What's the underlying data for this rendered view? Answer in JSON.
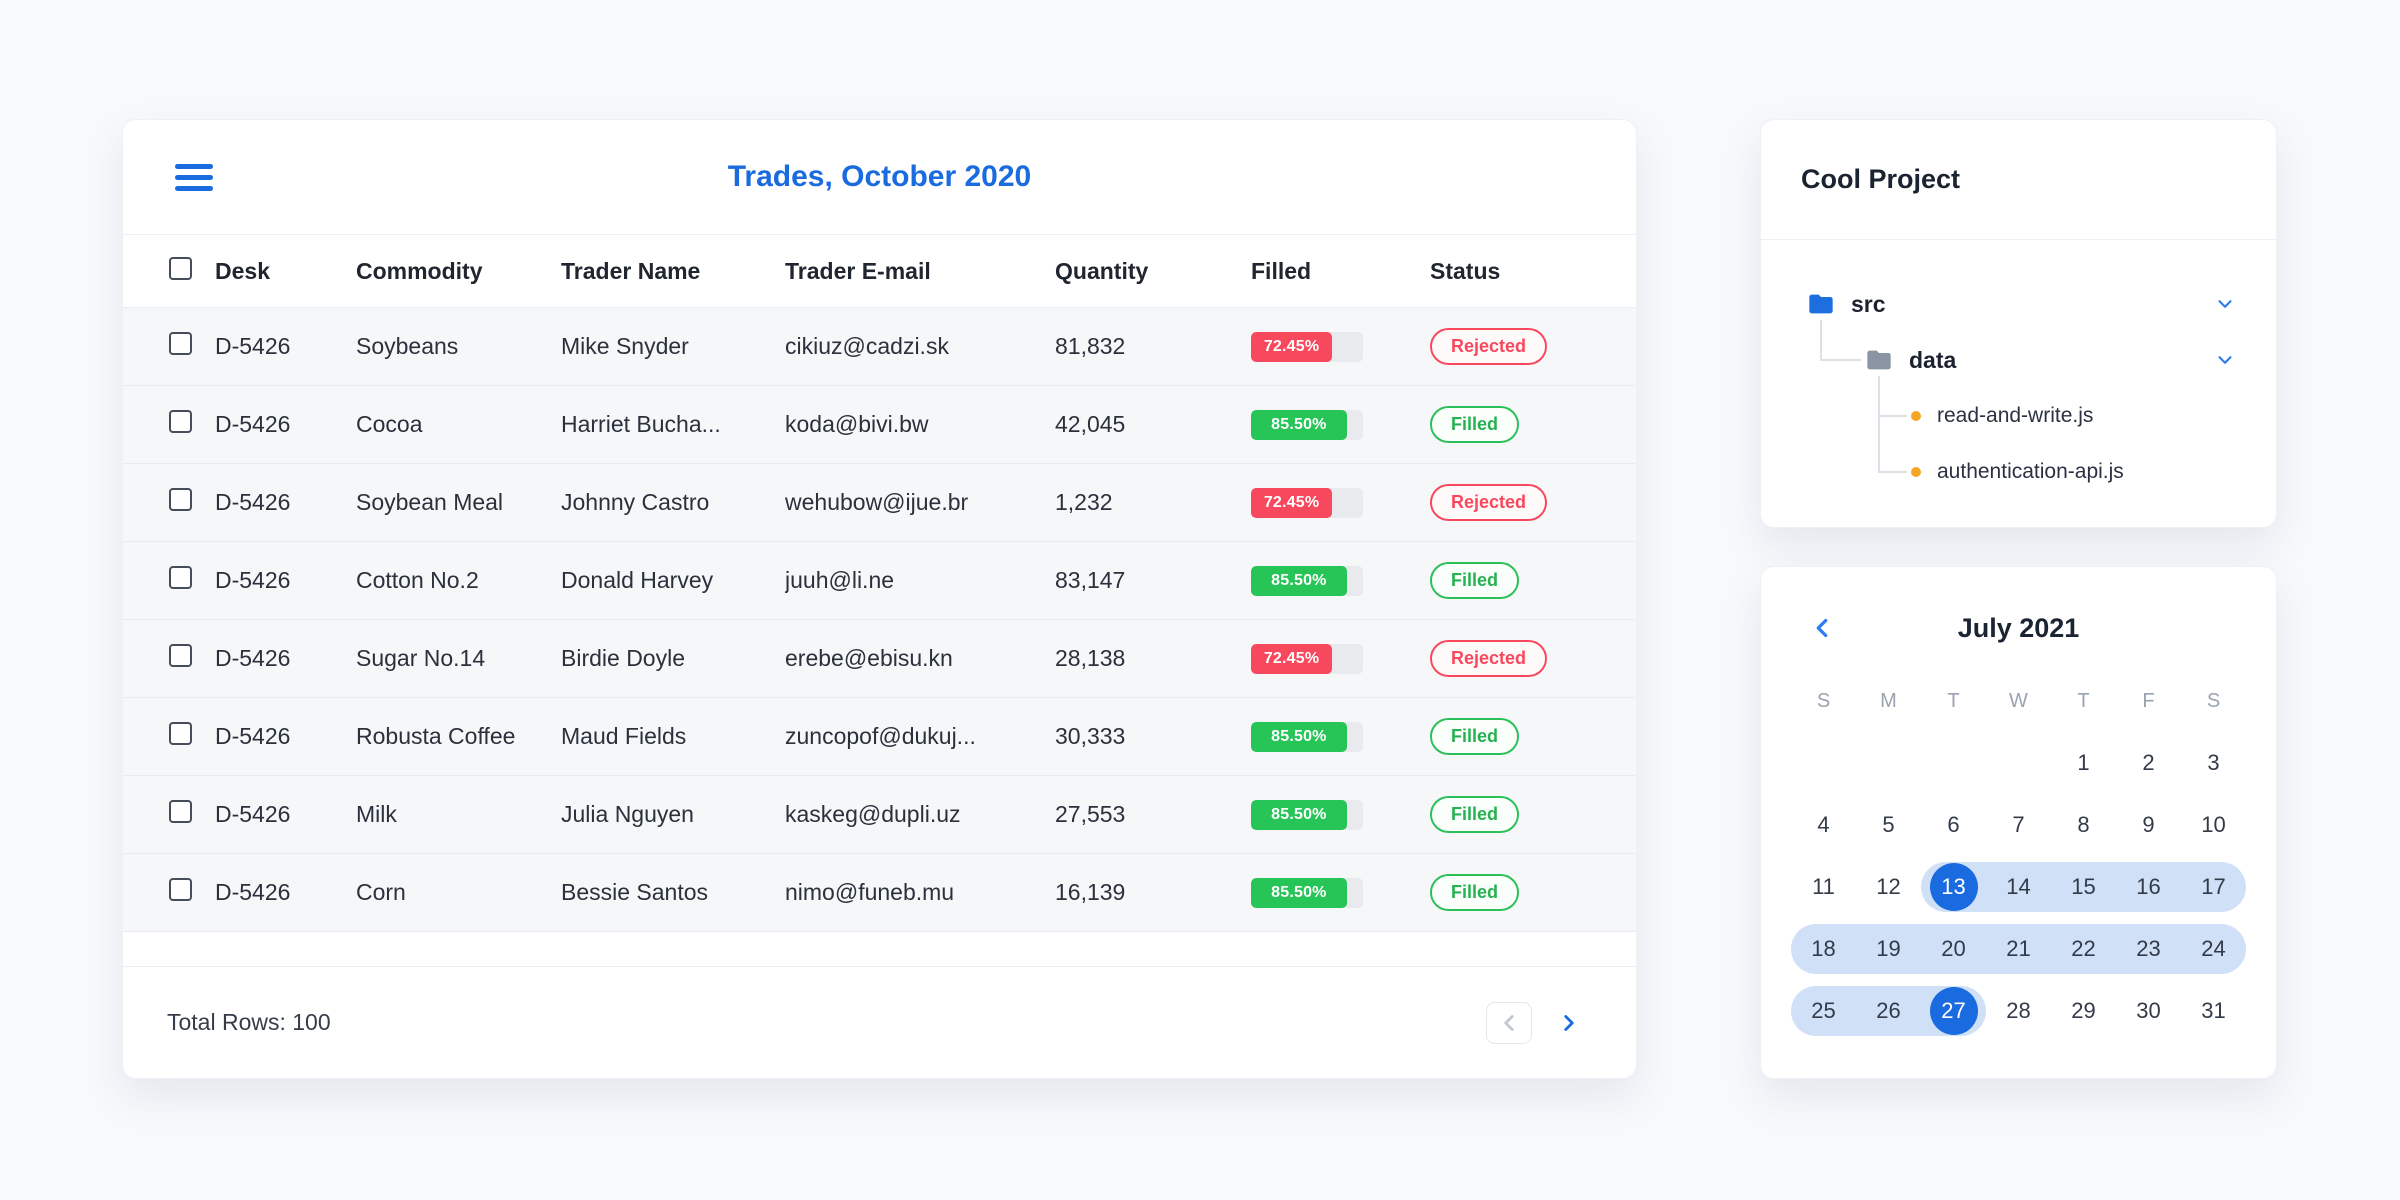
{
  "trades": {
    "title": "Trades, October 2020",
    "columns": {
      "desk": "Desk",
      "commodity": "Commodity",
      "trader": "Trader Name",
      "email": "Trader E-mail",
      "quantity": "Quantity",
      "filled": "Filled",
      "status": "Status"
    },
    "rows": [
      {
        "desk": "D-5426",
        "commodity": "Soybeans",
        "trader": "Mike Snyder",
        "email": "cikiuz@cadzi.sk",
        "quantity": "81,832",
        "filled_label": "72.45%",
        "filled_pct": 72.45,
        "status": "Rejected"
      },
      {
        "desk": "D-5426",
        "commodity": "Cocoa",
        "trader": "Harriet Bucha...",
        "email": "koda@bivi.bw",
        "quantity": "42,045",
        "filled_label": "85.50%",
        "filled_pct": 85.5,
        "status": "Filled"
      },
      {
        "desk": "D-5426",
        "commodity": "Soybean Meal",
        "trader": "Johnny Castro",
        "email": "wehubow@ijue.br",
        "quantity": "1,232",
        "filled_label": "72.45%",
        "filled_pct": 72.45,
        "status": "Rejected"
      },
      {
        "desk": "D-5426",
        "commodity": "Cotton No.2",
        "trader": "Donald Harvey",
        "email": "juuh@li.ne",
        "quantity": "83,147",
        "filled_label": "85.50%",
        "filled_pct": 85.5,
        "status": "Filled"
      },
      {
        "desk": "D-5426",
        "commodity": "Sugar No.14",
        "trader": "Birdie Doyle",
        "email": "erebe@ebisu.kn",
        "quantity": "28,138",
        "filled_label": "72.45%",
        "filled_pct": 72.45,
        "status": "Rejected"
      },
      {
        "desk": "D-5426",
        "commodity": "Robusta Coffee",
        "trader": "Maud Fields",
        "email": "zuncopof@dukuj...",
        "quantity": "30,333",
        "filled_label": "85.50%",
        "filled_pct": 85.5,
        "status": "Filled"
      },
      {
        "desk": "D-5426",
        "commodity": "Milk",
        "trader": "Julia Nguyen",
        "email": "kaskeg@dupli.uz",
        "quantity": "27,553",
        "filled_label": "85.50%",
        "filled_pct": 85.5,
        "status": "Filled"
      },
      {
        "desk": "D-5426",
        "commodity": "Corn",
        "trader": "Bessie Santos",
        "email": "nimo@funeb.mu",
        "quantity": "16,139",
        "filled_label": "85.50%",
        "filled_pct": 85.5,
        "status": "Filled"
      }
    ],
    "footer": {
      "total_rows_label": "Total Rows: 100"
    }
  },
  "project": {
    "title": "Cool Project",
    "root_folder": "src",
    "sub_folder": "data",
    "files": [
      "read-and-write.js",
      "authentication-api.js"
    ]
  },
  "calendar": {
    "title": "July 2021",
    "day_headers": [
      "S",
      "M",
      "T",
      "W",
      "T",
      "F",
      "S"
    ],
    "weeks": [
      [
        null,
        null,
        null,
        null,
        1,
        2,
        3
      ],
      [
        4,
        5,
        6,
        7,
        8,
        9,
        10
      ],
      [
        11,
        12,
        13,
        14,
        15,
        16,
        17
      ],
      [
        18,
        19,
        20,
        21,
        22,
        23,
        24
      ],
      [
        25,
        26,
        27,
        28,
        29,
        30,
        31
      ]
    ],
    "range_start": 13,
    "range_end": 27,
    "selected_days": [
      13,
      27
    ]
  },
  "colors": {
    "accent_blue": "#1a6be0",
    "rejected_red": "#f8485e",
    "filled_green": "#27c458",
    "range_light_blue": "#cfe0f7",
    "selected_blue": "#1a6be0",
    "folder_blue": "#1d6fe0",
    "folder_gray": "#8a94a3",
    "file_dot_orange": "#f5a623"
  }
}
